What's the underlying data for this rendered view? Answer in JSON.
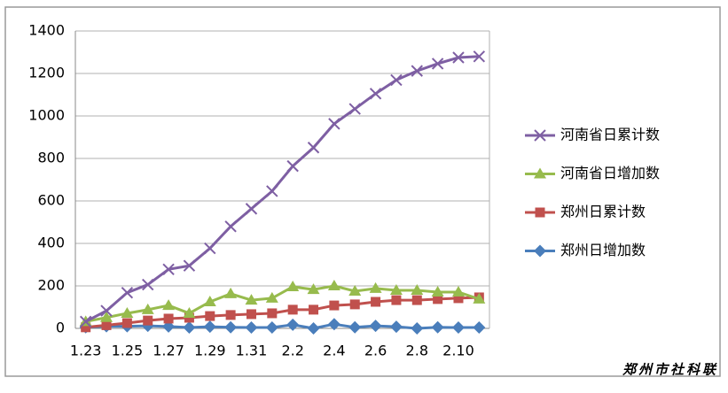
{
  "chart_data": {
    "type": "line",
    "categories": [
      "1.23",
      null,
      "1.25",
      null,
      "1.27",
      null,
      "1.29",
      null,
      "1.31",
      null,
      "2.2",
      null,
      "2.4",
      null,
      "2.6",
      null,
      "2.8",
      null,
      "2.10",
      null
    ],
    "series": [
      {
        "name": "河南省日累计数",
        "color": "#7e5fa3",
        "marker": "x",
        "values": [
          32,
          83,
          168,
          206,
          278,
          295,
          377,
          480,
          563,
          646,
          764,
          851,
          963,
          1033,
          1105,
          1169,
          1212,
          1246,
          1275,
          1280
        ]
      },
      {
        "name": "河南省日增加数",
        "color": "#97bb4d",
        "marker": "triangle",
        "values": [
          32,
          51,
          71,
          88,
          108,
          71,
          125,
          163,
          133,
          142,
          196,
          183,
          200,
          175,
          188,
          179,
          179,
          171,
          171,
          138
        ]
      },
      {
        "name": "郑州日累计数",
        "color": "#c0504d",
        "marker": "square",
        "values": [
          5,
          15,
          25,
          37,
          46,
          50,
          58,
          63,
          67,
          71,
          88,
          88,
          108,
          113,
          125,
          133,
          133,
          138,
          142,
          146
        ]
      },
      {
        "name": "郑州日增加数",
        "color": "#4a7ebb",
        "marker": "diamond",
        "values": [
          5,
          10,
          10,
          12,
          9,
          4,
          8,
          5,
          4,
          4,
          17,
          0,
          20,
          5,
          12,
          8,
          0,
          5,
          4,
          4
        ]
      }
    ],
    "ylim": [
      0,
      1400
    ],
    "yticks": [
      0,
      200,
      400,
      600,
      800,
      1000,
      1200,
      1400
    ],
    "grid": true,
    "legend": "right",
    "watermark": "郑州市社科联"
  }
}
